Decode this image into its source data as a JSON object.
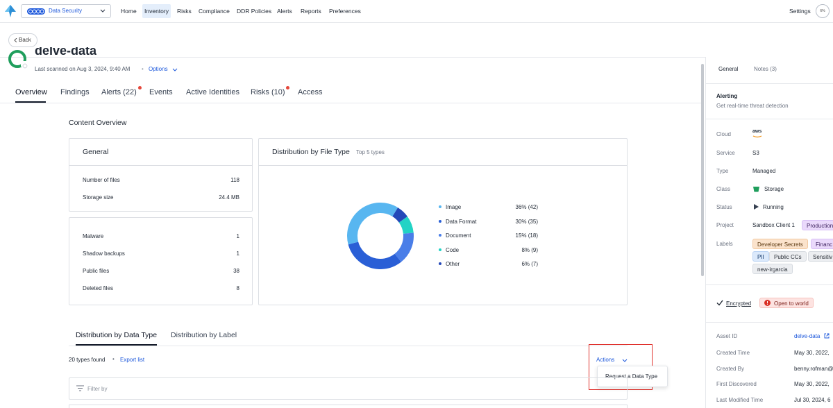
{
  "topnav": {
    "product": "Data Security",
    "items": [
      "Home",
      "Inventory",
      "Risks",
      "Compliance",
      "DDR Policies",
      "Alerts",
      "Reports",
      "Preferences"
    ],
    "active_item": "Inventory",
    "settings": "Settings",
    "avatar": "6%"
  },
  "back_label": "Back",
  "asset": {
    "title": "delve-data",
    "last_scanned": "Last scanned on  Aug 3, 2024, 9:40 AM",
    "options": "Options"
  },
  "tabs": [
    {
      "label": "Overview",
      "active": true,
      "dot": false
    },
    {
      "label": "Findings",
      "active": false,
      "dot": false
    },
    {
      "label": "Alerts (22)",
      "active": false,
      "dot": true
    },
    {
      "label": "Events",
      "active": false,
      "dot": false
    },
    {
      "label": "Active Identities",
      "active": false,
      "dot": false
    },
    {
      "label": "Risks (10)",
      "active": false,
      "dot": true
    },
    {
      "label": "Access",
      "active": false,
      "dot": false
    }
  ],
  "content_overview": {
    "title": "Content Overview",
    "general_title": "General",
    "general_stats": [
      {
        "label": "Number of files",
        "value": "118"
      },
      {
        "label": "Storage size",
        "value": "24.4 MB"
      }
    ],
    "extra_stats": [
      {
        "label": "Malware",
        "value": "1"
      },
      {
        "label": "Shadow backups",
        "value": "1"
      },
      {
        "label": "Public files",
        "value": "38"
      },
      {
        "label": "Deleted files",
        "value": "8"
      }
    ],
    "distribution_title": "Distribution by File Type",
    "distribution_sub": "Top 5 types"
  },
  "chart_data": {
    "type": "pie",
    "donut": true,
    "categories": [
      "Image",
      "Data Format",
      "Document",
      "Code",
      "Other"
    ],
    "values": [
      36,
      30,
      15,
      8,
      6
    ],
    "counts": [
      42,
      35,
      18,
      9,
      7
    ],
    "value_labels": [
      "36% (42)",
      "30% (35)",
      "15% (18)",
      "8% (9)",
      "6% (7)"
    ],
    "colors": [
      "#58b6f0",
      "#2a5fd6",
      "#4a7ee8",
      "#22d3c5",
      "#2348b8"
    ],
    "legend": "right"
  },
  "bottom_tabs": [
    {
      "label": "Distribution by Data Type",
      "active": true
    },
    {
      "label": "Distribution by Label",
      "active": false
    }
  ],
  "types_found": "20 types found",
  "export_list": "Export list",
  "actions": {
    "label": "Actions",
    "menu": [
      "Request a Data Type"
    ]
  },
  "filter_placeholder": "Filter by",
  "right_panel": {
    "tabs": [
      "General",
      "Notes (3)"
    ],
    "alerting_title": "Alerting",
    "alerting_sub": "Get real-time threat detection",
    "properties": [
      {
        "label": "Cloud",
        "value": "aws"
      },
      {
        "label": "Service",
        "value": "S3"
      },
      {
        "label": "Type",
        "value": "Managed"
      },
      {
        "label": "Class",
        "value": "Storage"
      },
      {
        "label": "Status",
        "value": "Running"
      },
      {
        "label": "Project",
        "value": "Sandbox Client 1"
      }
    ],
    "project_chip": "Production",
    "labels_label": "Labels",
    "labels": [
      "Developer Secrets",
      "Financ",
      "PII",
      "Public CCs",
      "Sensitiv",
      "new-irgarcia"
    ],
    "encrypted": "Encrypted",
    "open_to_world": "Open to world",
    "details": [
      {
        "label": "Asset ID",
        "value": "delve-data"
      },
      {
        "label": "Created Time",
        "value": "May 30, 2022,"
      },
      {
        "label": "Created By",
        "value": "benny.rofman@"
      },
      {
        "label": "First Discovered",
        "value": "May 30, 2022,"
      },
      {
        "label": "Last Modified Time",
        "value": "Jul 30, 2024, 6"
      }
    ]
  }
}
